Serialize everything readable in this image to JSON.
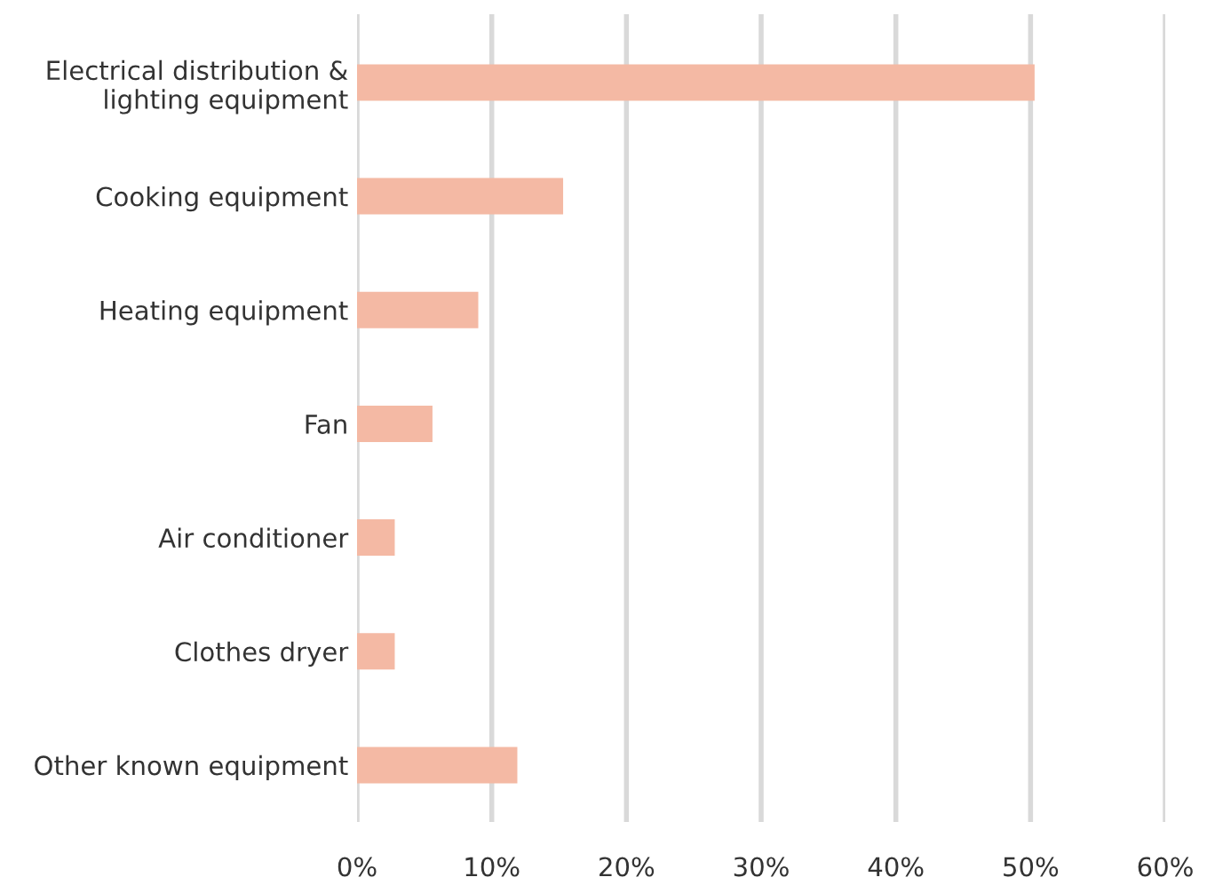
{
  "chart_data": {
    "type": "bar",
    "orientation": "horizontal",
    "categories": [
      "Electrical distribution &\nlighting equipment",
      "Cooking equipment",
      "Heating equipment",
      "Fan",
      "Air conditioner",
      "Clothes dryer",
      "Other known equipment"
    ],
    "values": [
      50.3,
      15.3,
      9.0,
      5.6,
      2.8,
      2.8,
      11.9
    ],
    "color": "#f4b9a4",
    "xlim": [
      0,
      60
    ],
    "xticks": [
      {
        "value": 0,
        "label": "0%"
      },
      {
        "value": 10,
        "label": "10%"
      },
      {
        "value": 20,
        "label": "20%"
      },
      {
        "value": 30,
        "label": "30%"
      },
      {
        "value": 40,
        "label": "40%"
      },
      {
        "value": 50,
        "label": "50%"
      },
      {
        "value": 60,
        "label": "60%"
      }
    ],
    "grid": "x"
  }
}
